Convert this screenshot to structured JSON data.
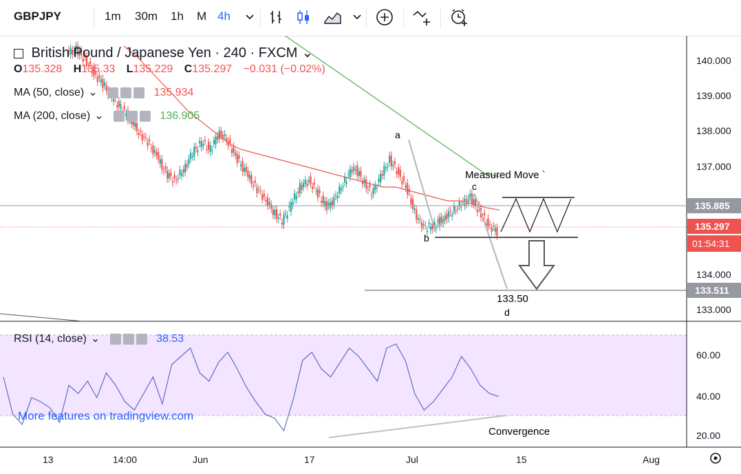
{
  "toolbar": {
    "symbol": "GBPJPY",
    "intervals": [
      "1m",
      "30m",
      "1h",
      "M",
      "4h"
    ],
    "active_interval": "4h",
    "icons": [
      "chevron-down-icon",
      "bar-chart-icon",
      "candlestick-icon",
      "area-chart-icon",
      "chevron-down-icon",
      "compare-plus-icon",
      "indicators-icon",
      "alert-clock-icon"
    ]
  },
  "legend": {
    "title": "British Pound / Japanese Yen · 240 · FXCM",
    "ohlc": {
      "o_label": "O",
      "o": "135.328",
      "h_label": "H",
      "h": "135.33",
      "l_label": "L",
      "l": "135.229",
      "c_label": "C",
      "c": "135.297",
      "chg": "−0.031 (−0.02%)"
    },
    "ma50": {
      "label": "MA (50, close)",
      "value": "135.934"
    },
    "ma200": {
      "label": "MA (200, close)",
      "value": "136.905"
    },
    "rsi": {
      "label": "RSI (14, close)",
      "value": "38.53"
    }
  },
  "colors": {
    "up": "#26a69a",
    "down": "#ef5350",
    "ma50": "#ef5350",
    "ma200": "#4caf50",
    "rsi": "#5b6cc5",
    "rsi_band": "#f3e5ff",
    "annot": "#9598a1",
    "accent": "#2962ff"
  },
  "annotations": {
    "a": "a",
    "b": "b",
    "c": "c",
    "d": "d",
    "measured_move": "Measured Move `",
    "target": "133.50",
    "convergence": "Convergence",
    "watermark": "More features on tradingview.com"
  },
  "price_labels": {
    "level1": "135.885",
    "current": "135.297",
    "countdown": "01:54:31",
    "level2": "133.511"
  },
  "chart_data": [
    {
      "type": "line",
      "title": "British Pound / Japanese Yen · 240 · FXCM",
      "y_ticks": [
        "140.000",
        "139.000",
        "138.000",
        "137.000",
        "134.000",
        "133.000"
      ],
      "ylim": [
        132.7,
        141.0
      ],
      "x_ticks": [
        "13",
        "14:00",
        "Jun",
        "17",
        "Jul",
        "15",
        "Aug"
      ],
      "series": [
        {
          "name": "GBPJPY",
          "values": [
            140.5,
            140.6,
            140.3,
            139.9,
            139.6,
            139.2,
            138.9,
            138.6,
            138.2,
            137.9,
            137.5,
            137.0,
            136.8,
            137.1,
            137.6,
            137.9,
            137.7,
            138.2,
            137.9,
            137.4,
            137.0,
            136.6,
            136.3,
            135.9,
            135.6,
            136.1,
            136.6,
            136.8,
            136.4,
            136.0,
            136.3,
            136.8,
            137.2,
            136.8,
            136.4,
            136.9,
            137.4,
            137.0,
            136.5,
            135.7,
            135.4,
            135.5,
            135.7,
            135.9,
            136.1,
            136.3,
            135.9,
            135.5,
            135.297
          ]
        },
        {
          "name": "MA (50, close)",
          "values": [
            140.7,
            140.4,
            140.0,
            139.6,
            139.2,
            138.8,
            138.5,
            138.2,
            137.9,
            137.7,
            137.6,
            137.5,
            137.4,
            137.3,
            137.2,
            137.1,
            137.0,
            136.9,
            136.8,
            136.7,
            136.6,
            136.6,
            136.5,
            136.4,
            136.3,
            136.2,
            136.2,
            136.1,
            136.0,
            135.934
          ]
        },
        {
          "name": "MA (200, close)",
          "values": [
            141.2,
            140.9,
            140.6,
            140.3,
            140.0,
            139.7,
            139.4,
            139.1,
            138.8,
            138.5,
            138.2,
            137.9,
            137.6,
            137.3,
            137.0,
            136.905
          ]
        }
      ]
    },
    {
      "type": "line",
      "title": "RSI (14, close)",
      "y_ticks": [
        "60.00",
        "40.00",
        "20.00"
      ],
      "ylim": [
        14,
        74
      ],
      "bands": [
        30,
        70
      ],
      "series": [
        {
          "name": "RSI (14, close)",
          "values": [
            48,
            30,
            25,
            38,
            36,
            33,
            26,
            44,
            40,
            46,
            38,
            50,
            44,
            36,
            32,
            40,
            48,
            35,
            54,
            58,
            62,
            50,
            46,
            55,
            60,
            52,
            43,
            36,
            30,
            28,
            22,
            37,
            56,
            60,
            52,
            48,
            55,
            62,
            58,
            52,
            46,
            62,
            64,
            56,
            40,
            32,
            36,
            42,
            48,
            58,
            52,
            44,
            40,
            38.53
          ]
        }
      ]
    }
  ]
}
